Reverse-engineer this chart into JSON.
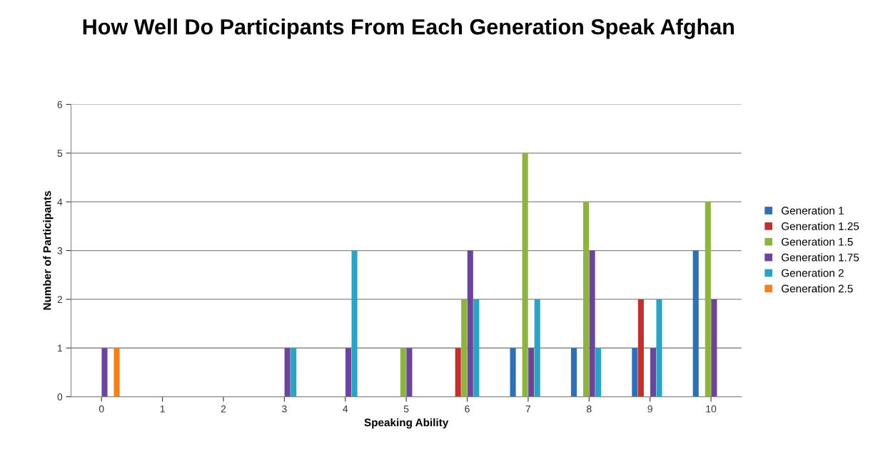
{
  "chart_data": {
    "type": "bar",
    "title": "How Well Do Participants From Each Generation Speak Afghan",
    "xlabel": "Speaking Ability",
    "ylabel": "Number of Participants",
    "categories": [
      "0",
      "1",
      "2",
      "3",
      "4",
      "5",
      "6",
      "7",
      "8",
      "9",
      "10"
    ],
    "series": [
      {
        "name": "Generation 1",
        "color": "#2f6fb5",
        "values": [
          0,
          0,
          0,
          0,
          0,
          0,
          0,
          1,
          1,
          1,
          3
        ]
      },
      {
        "name": "Generation 1.25",
        "color": "#c0312e",
        "values": [
          0,
          0,
          0,
          0,
          0,
          0,
          1,
          0,
          0,
          2,
          0
        ]
      },
      {
        "name": "Generation 1.5",
        "color": "#8db43e",
        "values": [
          0,
          0,
          0,
          0,
          0,
          1,
          2,
          5,
          4,
          0,
          4
        ]
      },
      {
        "name": "Generation 1.75",
        "color": "#6b459a",
        "values": [
          1,
          0,
          0,
          1,
          1,
          1,
          3,
          1,
          3,
          1,
          2
        ]
      },
      {
        "name": "Generation 2",
        "color": "#2ba3c3",
        "values": [
          0,
          0,
          0,
          1,
          3,
          0,
          2,
          2,
          1,
          2,
          0
        ]
      },
      {
        "name": "Generation 2.5",
        "color": "#f0821f",
        "values": [
          1,
          0,
          0,
          0,
          0,
          0,
          0,
          0,
          0,
          0,
          0
        ]
      }
    ],
    "ylim": [
      0,
      6
    ],
    "yticks": [
      0,
      1,
      2,
      3,
      4,
      5,
      6
    ],
    "grid": "y",
    "legend": "right"
  }
}
